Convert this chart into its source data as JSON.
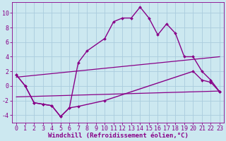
{
  "background_color": "#cce8f0",
  "grid_color": "#aaccdd",
  "line_color": "#880088",
  "xlabel": "Windchill (Refroidissement éolien,°C)",
  "xlabel_color": "#880088",
  "xlabel_fontsize": 6.5,
  "tick_color": "#880088",
  "tick_fontsize": 6.0,
  "xlim": [
    -0.5,
    23.5
  ],
  "ylim": [
    -5.0,
    11.5
  ],
  "yticks": [
    -4,
    -2,
    0,
    2,
    4,
    6,
    8,
    10
  ],
  "xticks": [
    0,
    1,
    2,
    3,
    4,
    5,
    6,
    7,
    8,
    9,
    10,
    11,
    12,
    13,
    14,
    15,
    16,
    17,
    18,
    19,
    20,
    21,
    22,
    23
  ],
  "series": [
    {
      "x": [
        0,
        1,
        2,
        3,
        4,
        5,
        6,
        7,
        8,
        10,
        11,
        12,
        13,
        14,
        15,
        16,
        17,
        18,
        19,
        20,
        21,
        22,
        23
      ],
      "y": [
        1.5,
        0.0,
        -2.3,
        -2.5,
        -2.7,
        -4.2,
        -3.0,
        3.2,
        4.8,
        6.5,
        8.8,
        9.3,
        9.3,
        10.8,
        9.3,
        7.0,
        8.5,
        7.2,
        4.0,
        4.0,
        2.0,
        0.8,
        -0.8
      ],
      "marker": "D",
      "markersize": 2.0,
      "linewidth": 1.0
    },
    {
      "x": [
        0,
        1,
        2,
        3,
        4,
        5,
        6,
        7,
        10,
        20,
        21,
        22,
        23
      ],
      "y": [
        1.5,
        0.0,
        -2.3,
        -2.5,
        -2.7,
        -4.2,
        -3.0,
        -2.8,
        -2.0,
        2.0,
        0.8,
        0.5,
        -0.8
      ],
      "marker": "D",
      "markersize": 2.0,
      "linewidth": 1.0
    },
    {
      "x": [
        0,
        23
      ],
      "y": [
        1.2,
        4.0
      ],
      "marker": null,
      "markersize": 0,
      "linewidth": 0.9
    },
    {
      "x": [
        0,
        23
      ],
      "y": [
        -1.5,
        -0.7
      ],
      "marker": null,
      "markersize": 0,
      "linewidth": 0.9
    }
  ]
}
